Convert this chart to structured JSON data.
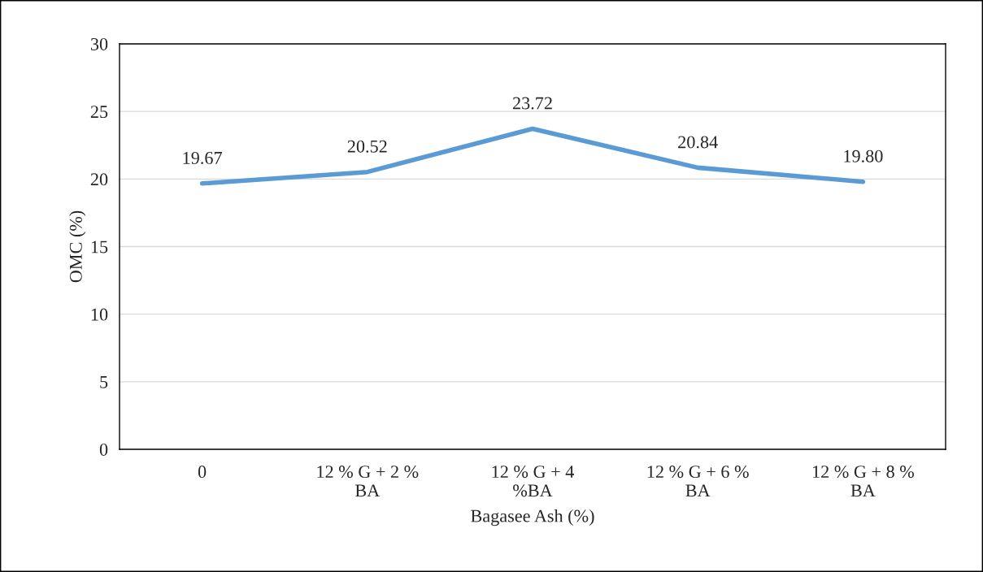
{
  "chart_data": {
    "type": "line",
    "xlabel": "Bagasee Ash (%)",
    "ylabel": "OMC (%)",
    "categories": [
      "0",
      "12 % G + 2 %\nBA",
      "12 % G + 4\n%BA",
      "12 % G + 6 %\nBA",
      "12 % G + 8 %\nBA"
    ],
    "series": [
      {
        "color": "#5b9bd5",
        "values": [
          19.67,
          20.52,
          23.72,
          20.84,
          19.8
        ]
      }
    ],
    "value_labels": [
      "19.67",
      "20.52",
      "23.72",
      "20.84",
      "19.80"
    ],
    "ylim": [
      0,
      30
    ],
    "yticks": [
      0,
      5,
      10,
      15,
      20,
      25,
      30
    ],
    "grid": "y",
    "marker": "none",
    "line_style": "solid"
  }
}
